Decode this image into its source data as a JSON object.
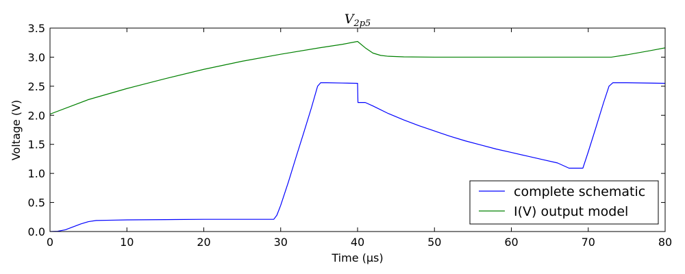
{
  "chart_data": {
    "type": "line",
    "title": {
      "main": "V",
      "subscript": "2p5"
    },
    "xlabel": "Time (µs)",
    "ylabel": "Voltage (V)",
    "xlim": [
      0,
      80
    ],
    "ylim": [
      0,
      3.5
    ],
    "xticks": [
      0,
      10,
      20,
      30,
      40,
      50,
      60,
      70,
      80
    ],
    "xtick_labels": [
      "0",
      "10",
      "20",
      "30",
      "40",
      "50",
      "60",
      "70",
      "80"
    ],
    "yticks": [
      0,
      0.5,
      1.0,
      1.5,
      2.0,
      2.5,
      3.0,
      3.5
    ],
    "ytick_labels": [
      "0.0",
      "0.5",
      "1.0",
      "1.5",
      "2.0",
      "2.5",
      "3.0",
      "3.5"
    ],
    "grid": false,
    "legend_position": "lower-right",
    "series": [
      {
        "name": "complete schematic",
        "color": "#0000ff",
        "points": [
          [
            0,
            0
          ],
          [
            1,
            0.005
          ],
          [
            2,
            0.03
          ],
          [
            3,
            0.08
          ],
          [
            4,
            0.13
          ],
          [
            5,
            0.17
          ],
          [
            6,
            0.19
          ],
          [
            8,
            0.195
          ],
          [
            10,
            0.2
          ],
          [
            15,
            0.205
          ],
          [
            20,
            0.21
          ],
          [
            25,
            0.21
          ],
          [
            29.1,
            0.21
          ],
          [
            29.5,
            0.28
          ],
          [
            30,
            0.45
          ],
          [
            31,
            0.85
          ],
          [
            32,
            1.28
          ],
          [
            33,
            1.7
          ],
          [
            34,
            2.13
          ],
          [
            34.8,
            2.5
          ],
          [
            35.2,
            2.56
          ],
          [
            36,
            2.56
          ],
          [
            38,
            2.555
          ],
          [
            40,
            2.55
          ],
          [
            40.05,
            2.22
          ],
          [
            41,
            2.22
          ],
          [
            42,
            2.16
          ],
          [
            44,
            2.03
          ],
          [
            46,
            1.92
          ],
          [
            48,
            1.82
          ],
          [
            50,
            1.73
          ],
          [
            52,
            1.64
          ],
          [
            54,
            1.56
          ],
          [
            56,
            1.49
          ],
          [
            58,
            1.42
          ],
          [
            60,
            1.36
          ],
          [
            62,
            1.3
          ],
          [
            64,
            1.24
          ],
          [
            66,
            1.18
          ],
          [
            67.5,
            1.09
          ],
          [
            69.3,
            1.09
          ],
          [
            70,
            1.37
          ],
          [
            71,
            1.79
          ],
          [
            72,
            2.22
          ],
          [
            72.7,
            2.5
          ],
          [
            73.2,
            2.56
          ],
          [
            75,
            2.56
          ],
          [
            80,
            2.55
          ]
        ]
      },
      {
        "name": "I(V) output model",
        "color": "#008000",
        "points": [
          [
            0,
            2.02
          ],
          [
            5,
            2.27
          ],
          [
            10,
            2.46
          ],
          [
            15,
            2.63
          ],
          [
            20,
            2.79
          ],
          [
            25,
            2.93
          ],
          [
            30,
            3.05
          ],
          [
            35,
            3.16
          ],
          [
            38,
            3.22
          ],
          [
            40,
            3.27
          ],
          [
            41,
            3.16
          ],
          [
            42,
            3.07
          ],
          [
            43,
            3.03
          ],
          [
            44,
            3.015
          ],
          [
            46,
            3.005
          ],
          [
            50,
            3.0
          ],
          [
            60,
            3.0
          ],
          [
            70,
            3.0
          ],
          [
            73,
            3.0
          ],
          [
            75,
            3.04
          ],
          [
            78,
            3.11
          ],
          [
            80,
            3.16
          ]
        ]
      }
    ]
  }
}
